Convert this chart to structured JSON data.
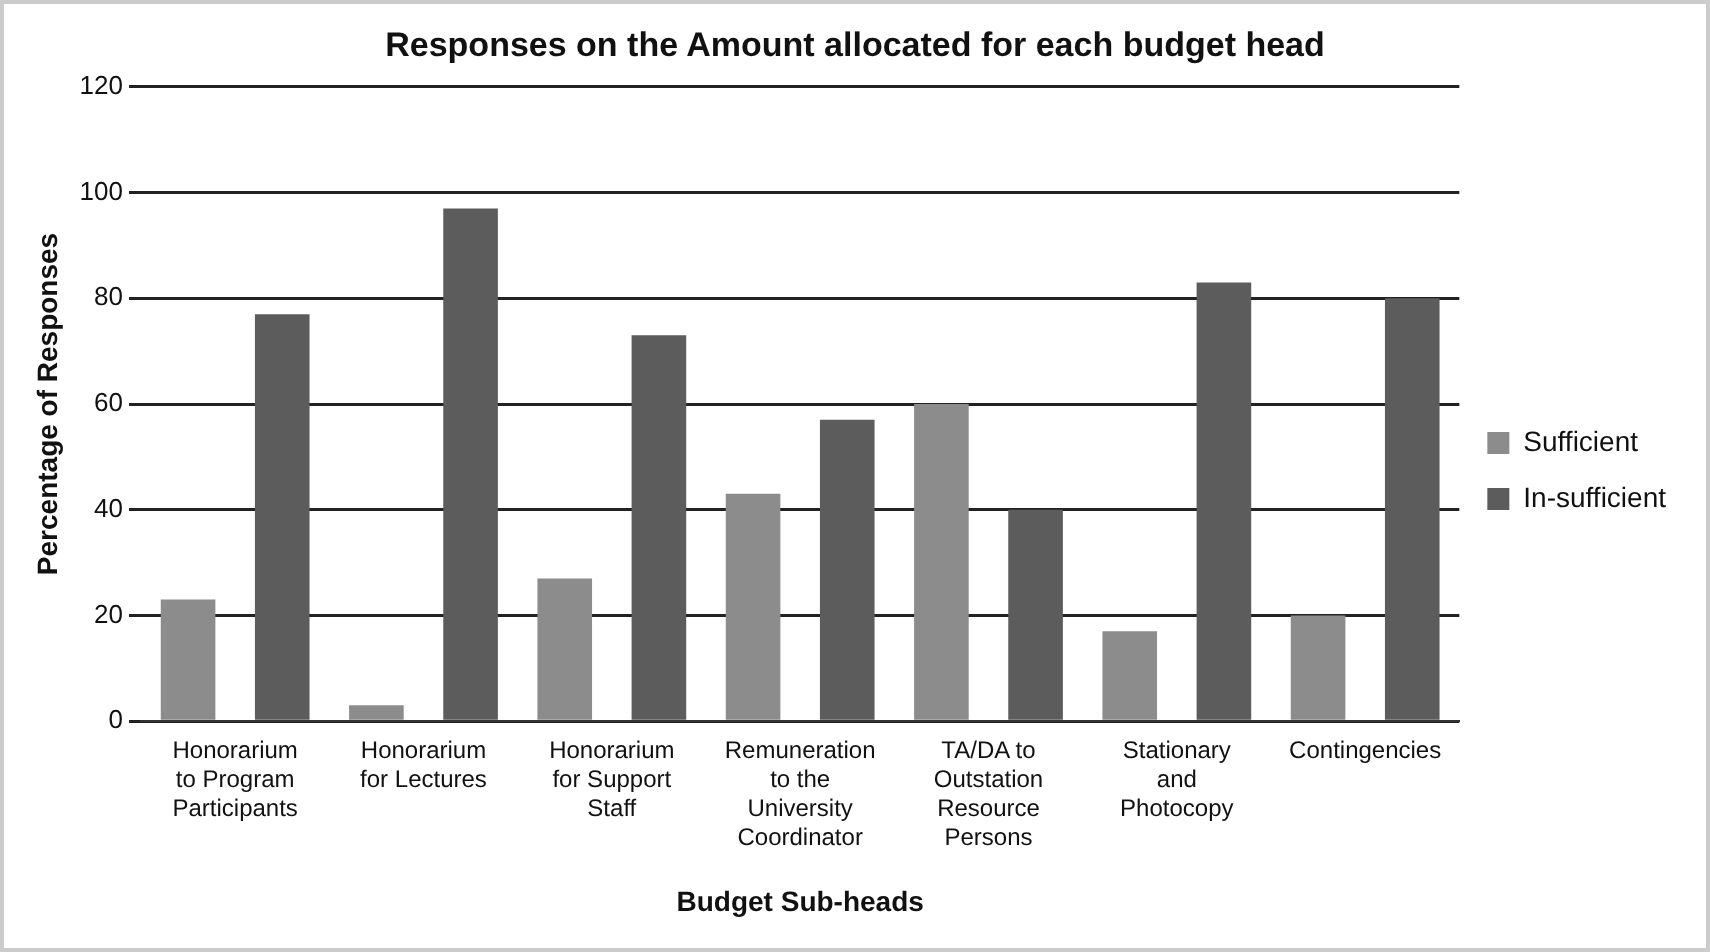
{
  "chart_data": {
    "type": "bar",
    "title": "Responses on the Amount allocated for each budget head",
    "xlabel": "Budget Sub-heads",
    "ylabel": "Percentage of Responses",
    "categories": [
      "Honorarium to Program Participants",
      "Honorarium for Lectures",
      "Honorarium for Support Staff",
      "Remuneration to the University Coordinator",
      "TA/DA to Outstation Resource Persons",
      "Stationary and Photocopy",
      "Contingencies"
    ],
    "series": [
      {
        "name": "Sufficient",
        "color": "#8c8c8c",
        "values": [
          23,
          3,
          27,
          43,
          60,
          17,
          20
        ]
      },
      {
        "name": "In-sufficient",
        "color": "#5c5c5c",
        "values": [
          77,
          97,
          73,
          57,
          40,
          83,
          80
        ]
      }
    ],
    "ylim": [
      0,
      120
    ],
    "yticks": [
      0,
      20,
      40,
      60,
      80,
      100,
      120
    ],
    "grid": "y",
    "legend": "right"
  }
}
